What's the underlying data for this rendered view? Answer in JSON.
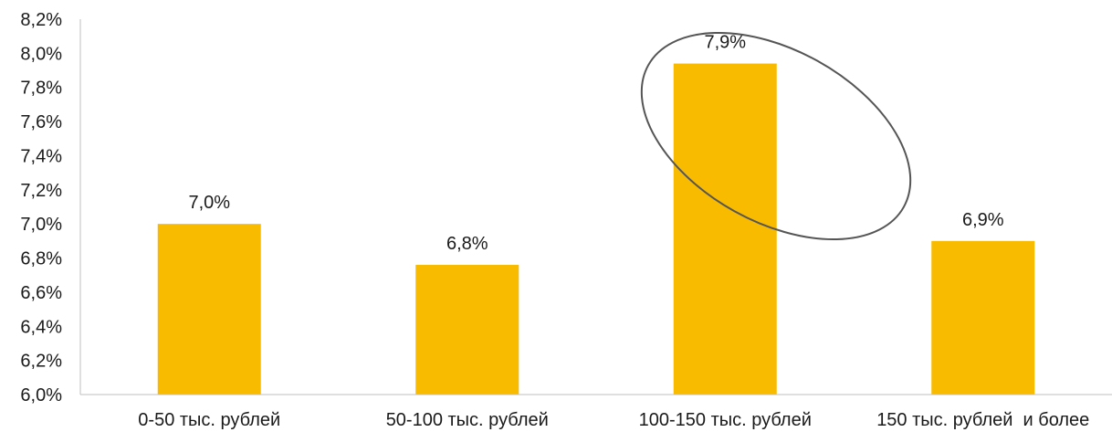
{
  "chart_data": {
    "type": "bar",
    "categories": [
      "0-50 тыс. рублей",
      "50-100 тыс. рублей",
      "100-150 тыс. рублей",
      "150 тыс. рублей  и более"
    ],
    "values": [
      7.0,
      6.76,
      7.94,
      6.9
    ],
    "data_labels": [
      "7,0%",
      "6,8%",
      "7,9%",
      "6,9%"
    ],
    "ylim": [
      6.0,
      8.2
    ],
    "y_ticks": [
      6.0,
      6.2,
      6.4,
      6.6,
      6.8,
      7.0,
      7.2,
      7.4,
      7.6,
      7.8,
      8.0,
      8.2
    ],
    "y_tick_labels": [
      "6,0%",
      "6,2%",
      "6,4%",
      "6,6%",
      "6,8%",
      "7,0%",
      "7,2%",
      "7,4%",
      "7,6%",
      "7,8%",
      "8,0%",
      "8,2%"
    ],
    "grid": false,
    "bar_color": "#F9BB00",
    "annotation": {
      "shape": "ellipse",
      "encircles_categories": [
        "100-150 тыс. рублей",
        "150 тыс. рублей  и более"
      ],
      "color": "#555555"
    },
    "title": "",
    "xlabel": "",
    "ylabel": ""
  }
}
